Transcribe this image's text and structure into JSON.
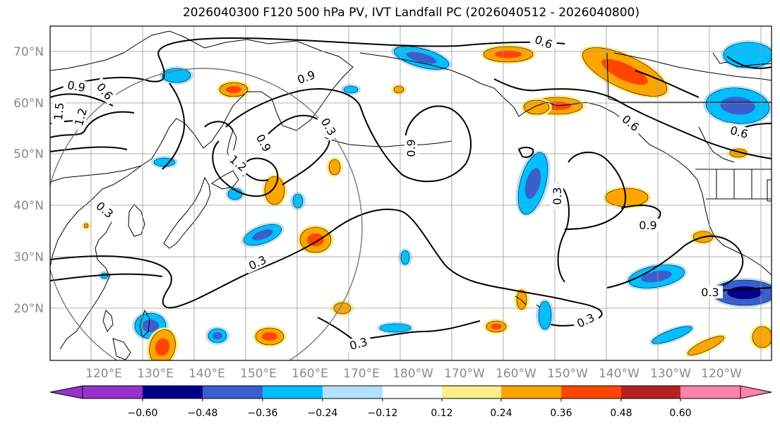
{
  "title": "2026040300 F120 500 hPa PV, IVT Landfall PC (2026040512 - 2026040800)",
  "map": {
    "lat_labels": [
      "70°N",
      "60°N",
      "50°N",
      "40°N",
      "30°N",
      "20°N"
    ],
    "lon_labels": [
      "120°E",
      "130°E",
      "140°E",
      "150°E",
      "160°E",
      "170°E",
      "180°W",
      "170°W",
      "160°W",
      "150°W",
      "140°W",
      "130°W",
      "120°W"
    ],
    "contour_labels": [
      "0.9",
      "0.6",
      "1.5",
      "1.2",
      "0.9",
      "0.3",
      "0.9",
      "1.2",
      "0.3",
      "0.3",
      "0.9",
      "0.6",
      "0.6",
      "0.9",
      "0.3",
      "0.6",
      "0.3",
      "0.3",
      "0.3"
    ]
  },
  "colorbar": {
    "ticks": [
      "−0.60",
      "−0.48",
      "−0.36",
      "−0.24",
      "−0.12",
      "0.12",
      "0.24",
      "0.36",
      "0.48",
      "0.60"
    ],
    "colors": [
      "#9932cc",
      "#00008b",
      "#3a5fcd",
      "#00bfff",
      "#b0e2ff",
      "#ffffff",
      "#ffec8b",
      "#ffa500",
      "#ff4500",
      "#b22222",
      "#ff82ab"
    ]
  }
}
